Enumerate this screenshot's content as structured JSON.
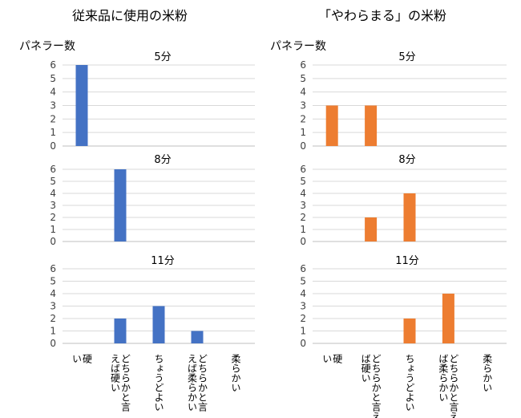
{
  "panels": [
    {
      "title": "従来品に使用の米粉",
      "ylabel": "パネラー数"
    },
    {
      "title": "「やわらまる」の米粉",
      "ylabel": "パネラー数"
    }
  ],
  "colors": {
    "conventional": "#4472C4",
    "yawaramaru": "#ED7D31",
    "grid": "#d9d9d9",
    "axis": "#bfbfbf"
  },
  "chart_data": [
    {
      "type": "bar",
      "title": "5分",
      "panel": 0,
      "series_color": "#4472C4",
      "categories": [
        "硬い",
        "どちらかと言えば硬い",
        "ちょうどよい",
        "どちらかと言えば柔らかい",
        "柔らかい"
      ],
      "values": [
        6,
        0,
        0,
        0,
        0
      ],
      "ylim": [
        0,
        6
      ],
      "yticks": [
        0,
        1,
        2,
        3,
        4,
        5,
        6
      ],
      "grid": true
    },
    {
      "type": "bar",
      "title": "8分",
      "panel": 0,
      "series_color": "#4472C4",
      "categories": [
        "硬い",
        "どちらかと言えば硬い",
        "ちょうどよい",
        "どちらかと言えば柔らかい",
        "柔らかい"
      ],
      "values": [
        0,
        6,
        0,
        0,
        0
      ],
      "ylim": [
        0,
        6
      ],
      "yticks": [
        0,
        1,
        2,
        3,
        4,
        5,
        6
      ],
      "grid": true
    },
    {
      "type": "bar",
      "title": "11分",
      "panel": 0,
      "series_color": "#4472C4",
      "categories": [
        "硬い",
        "どちらかと言えば硬い",
        "ちょうどよい",
        "どちらかと言えば柔らかい",
        "柔らかい"
      ],
      "values": [
        0,
        2,
        3,
        1,
        0
      ],
      "ylim": [
        0,
        6
      ],
      "yticks": [
        0,
        1,
        2,
        3,
        4,
        5,
        6
      ],
      "grid": true,
      "xtick_lines": [
        [
          "硬",
          "い"
        ],
        [
          "どちらかと言",
          "えば硬い"
        ],
        [
          "ちょうどよい"
        ],
        [
          "どちらかと言",
          "えば柔らかい"
        ],
        [
          "柔らかい"
        ]
      ]
    },
    {
      "type": "bar",
      "title": "5分",
      "panel": 1,
      "series_color": "#ED7D31",
      "categories": [
        "硬い",
        "どちらかと言えば硬い",
        "ちょうどよい",
        "どちらかと言えば柔らかい",
        "柔らかい"
      ],
      "values": [
        3,
        3,
        0,
        0,
        0
      ],
      "ylim": [
        0,
        6
      ],
      "yticks": [
        0,
        1,
        2,
        3,
        4,
        5,
        6
      ],
      "grid": true
    },
    {
      "type": "bar",
      "title": "8分",
      "panel": 1,
      "series_color": "#ED7D31",
      "categories": [
        "硬い",
        "どちらかと言えば硬い",
        "ちょうどよい",
        "どちらかと言えば柔らかい",
        "柔らかい"
      ],
      "values": [
        0,
        2,
        4,
        0,
        0
      ],
      "ylim": [
        0,
        6
      ],
      "yticks": [
        0,
        1,
        2,
        3,
        4,
        5,
        6
      ],
      "grid": true
    },
    {
      "type": "bar",
      "title": "11分",
      "panel": 1,
      "series_color": "#ED7D31",
      "categories": [
        "硬い",
        "どちらかと言えば硬い",
        "ちょうどよい",
        "どちらかと言えば柔らかい",
        "柔らかい"
      ],
      "values": [
        0,
        0,
        2,
        4,
        0
      ],
      "ylim": [
        0,
        6
      ],
      "yticks": [
        0,
        1,
        2,
        3,
        4,
        5,
        6
      ],
      "grid": true,
      "xtick_lines": [
        [
          "硬",
          "い"
        ],
        [
          "どちらかと言え",
          "ば硬い"
        ],
        [
          "ちょうどよい"
        ],
        [
          "どちらかと言え",
          "ば柔らかい"
        ],
        [
          "柔らかい"
        ]
      ]
    }
  ]
}
